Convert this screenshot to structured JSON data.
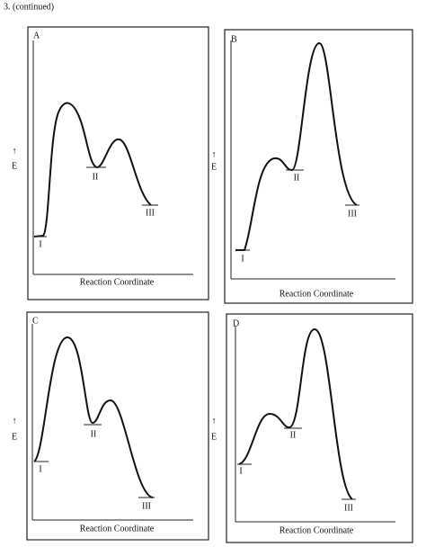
{
  "header": {
    "title": "3. (continued)"
  },
  "panels": [
    {
      "letter": "A",
      "y_arrow": "↑",
      "y_label": "E",
      "x_label": "Reaction Coordinate",
      "states": [
        "I",
        "II",
        "III"
      ]
    },
    {
      "letter": "B",
      "y_arrow": "↑",
      "y_label": "E",
      "x_label": "Reaction Coordinate",
      "states": [
        "I",
        "II",
        "III"
      ]
    },
    {
      "letter": "C",
      "y_arrow": "↑",
      "y_label": "E",
      "x_label": "Reaction Coordinate",
      "states": [
        "I",
        "II",
        "III"
      ]
    },
    {
      "letter": "D",
      "y_arrow": "↑",
      "y_label": "E",
      "x_label": "Reaction Coordinate",
      "states": [
        "I",
        "II",
        "III"
      ]
    }
  ]
}
